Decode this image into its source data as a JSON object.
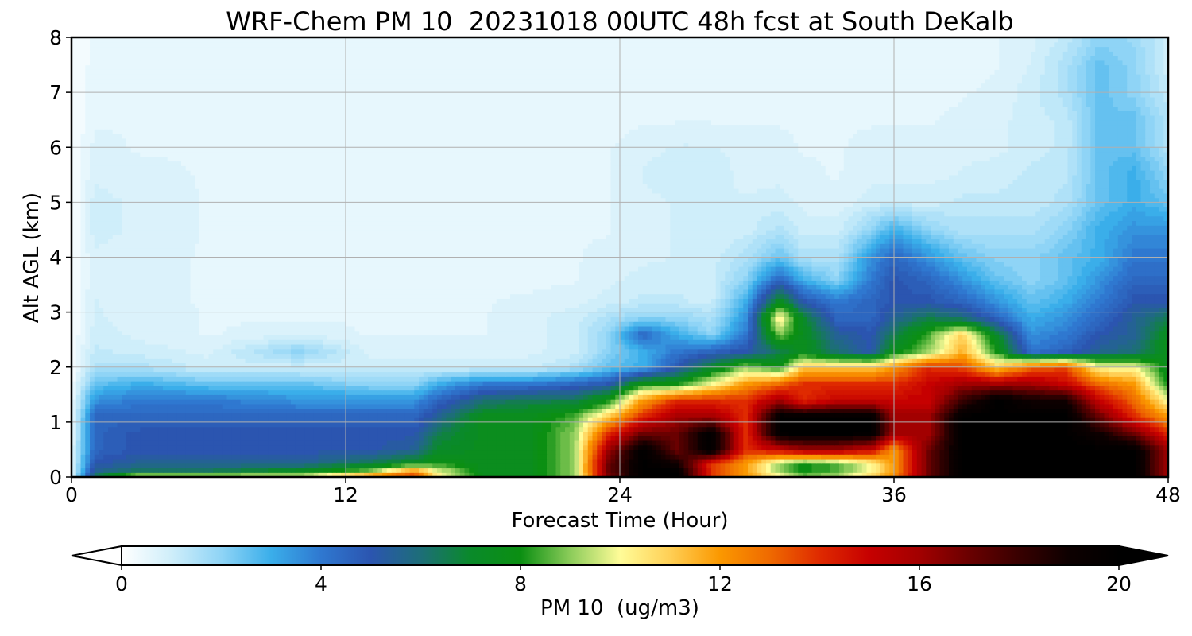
{
  "chart_data": {
    "type": "heatmap",
    "title": "WRF-Chem PM 10  20231018 00UTC 48h fcst at South DeKalb",
    "xlabel": "Forecast Time (Hour)",
    "ylabel": "Alt AGL (km)",
    "xlim": [
      0,
      48
    ],
    "ylim": [
      0,
      8
    ],
    "x_ticks": [
      0,
      12,
      24,
      36,
      48
    ],
    "y_ticks": [
      0,
      1,
      2,
      3,
      4,
      5,
      6,
      7,
      8
    ],
    "grid": true,
    "colorbar": {
      "label": "PM 10  (ug/m3)",
      "range": [
        0,
        20
      ],
      "ticks": [
        0,
        4,
        8,
        12,
        16,
        20
      ],
      "extend": "both",
      "orientation": "horizontal",
      "stops": [
        [
          0,
          "#ffffff"
        ],
        [
          1,
          "#cfeefa"
        ],
        [
          2,
          "#8fd4f6"
        ],
        [
          3,
          "#3aaeea"
        ],
        [
          4,
          "#2f78d0"
        ],
        [
          5,
          "#2b55b0"
        ],
        [
          6,
          "#1d6e78"
        ],
        [
          7,
          "#0a8a2a"
        ],
        [
          8,
          "#0b8f12"
        ],
        [
          9,
          "#8ccc5a"
        ],
        [
          10,
          "#fffc98"
        ],
        [
          11,
          "#ffcf55"
        ],
        [
          12,
          "#fb9800"
        ],
        [
          13,
          "#ef6a00"
        ],
        [
          14,
          "#df2a00"
        ],
        [
          15,
          "#c60000"
        ],
        [
          16,
          "#a20000"
        ],
        [
          17,
          "#6a0000"
        ],
        [
          18,
          "#380000"
        ],
        [
          19,
          "#0d0000"
        ],
        [
          20,
          "#000000"
        ]
      ]
    },
    "x": [
      0,
      1,
      3,
      6,
      10,
      13,
      15,
      16,
      18,
      20,
      22,
      23.5,
      25,
      26.5,
      28,
      29.5,
      31,
      32,
      33.5,
      35,
      36,
      37.5,
      39,
      40.5,
      42,
      43.5,
      45,
      46.5,
      48
    ],
    "y": [
      0,
      0.1,
      0.25,
      0.5,
      0.8,
      1.1,
      1.4,
      1.7,
      2.0,
      2.3,
      2.6,
      2.9,
      3.2,
      3.6,
      4.0,
      4.5,
      5.0,
      5.5,
      6.0,
      6.5,
      7.0,
      7.5,
      8.0
    ],
    "z": [
      [
        0.5,
        6.5,
        10.5,
        10.5,
        10,
        13,
        14,
        10.5,
        7.5,
        7.5,
        9,
        16.5,
        20,
        20,
        14,
        12,
        10.5,
        9,
        9.5,
        11,
        12.5,
        17,
        20,
        20,
        20,
        20,
        20,
        20,
        16
      ],
      [
        0.5,
        5.5,
        6.5,
        6.5,
        7.5,
        9,
        12.5,
        10,
        7.5,
        7.5,
        9,
        17,
        20,
        20,
        14,
        12,
        9,
        8,
        8.5,
        10,
        12,
        17,
        20,
        20,
        20,
        20,
        20,
        20,
        16
      ],
      [
        0.5,
        5.0,
        5.5,
        5.5,
        5.5,
        6.5,
        7.5,
        8.0,
        7.5,
        7.5,
        9,
        17,
        20,
        19,
        14,
        12,
        9,
        8,
        8.5,
        10,
        12,
        17,
        20,
        20,
        20,
        20,
        20,
        20,
        16
      ],
      [
        0.5,
        4.5,
        5.0,
        5.0,
        5.0,
        5.0,
        5.5,
        7.0,
        7.5,
        7.5,
        9,
        16,
        20,
        17,
        20,
        14,
        15,
        16,
        16,
        15,
        12,
        17,
        20,
        20,
        20,
        20,
        20,
        20,
        16
      ],
      [
        0.3,
        4.5,
        5.0,
        5.0,
        5.0,
        5.0,
        5.0,
        6.5,
        7.5,
        7.5,
        9,
        14,
        17,
        17,
        20,
        14,
        20,
        20,
        20,
        20,
        16,
        16,
        20,
        20,
        20,
        20,
        19,
        17,
        14
      ],
      [
        0.3,
        4.5,
        4.5,
        4.5,
        4.5,
        4.5,
        4.5,
        5.5,
        7.5,
        7.5,
        8.5,
        11,
        14,
        16,
        16,
        14,
        20,
        20,
        20,
        20,
        16,
        16,
        20,
        20,
        20,
        20,
        17,
        14,
        12
      ],
      [
        0.3,
        3.5,
        4.0,
        4.0,
        3.5,
        3.5,
        3.5,
        4.5,
        6.0,
        6.5,
        6.5,
        8,
        12,
        14,
        14,
        14,
        16,
        14,
        15,
        15,
        15,
        15,
        18,
        20,
        19,
        19,
        15,
        13,
        10
      ],
      [
        0.2,
        2.5,
        3.0,
        2.5,
        2.5,
        2.0,
        2.0,
        3.0,
        4.0,
        4.0,
        4.5,
        5,
        8,
        8,
        10,
        12,
        13,
        14,
        14,
        14,
        14,
        15,
        16,
        16,
        16,
        15,
        13,
        12,
        8
      ],
      [
        0.1,
        1.5,
        1.5,
        1.0,
        1.0,
        1.0,
        1.0,
        1.0,
        1.0,
        1.0,
        1.5,
        2.5,
        3.0,
        5,
        7,
        9,
        8,
        11,
        11,
        11,
        12,
        14,
        13.5,
        11,
        13,
        13.5,
        10,
        10,
        7.5
      ],
      [
        0.1,
        1.2,
        1.0,
        0.8,
        2.0,
        0.8,
        0.8,
        0.8,
        0.8,
        0.8,
        1.0,
        2.0,
        3.0,
        4.0,
        4.5,
        5.0,
        6.5,
        7.5,
        6.0,
        5.0,
        7.5,
        9,
        11.5,
        8,
        4,
        4.5,
        5.5,
        6.0,
        7.5
      ],
      [
        0.1,
        1.0,
        0.8,
        0.6,
        0.8,
        0.6,
        0.6,
        0.6,
        0.6,
        0.8,
        1.0,
        2.0,
        4.5,
        3.0,
        2.0,
        4.0,
        9.0,
        7.5,
        5.5,
        5.0,
        6.5,
        8.5,
        11,
        7,
        3.5,
        4.0,
        5.0,
        5.5,
        7.5
      ],
      [
        0.1,
        0.9,
        0.8,
        0.6,
        0.6,
        0.6,
        0.6,
        0.6,
        0.6,
        0.8,
        1.0,
        1.5,
        2.0,
        2.0,
        1.5,
        3.5,
        10.5,
        7.0,
        4.5,
        4.5,
        5.5,
        6.5,
        6.0,
        4.5,
        3.0,
        3.5,
        4.5,
        5.5,
        6.5
      ],
      [
        0.1,
        0.9,
        0.7,
        0.6,
        0.6,
        0.6,
        0.6,
        0.6,
        0.6,
        0.7,
        0.8,
        1.0,
        1.2,
        1.2,
        1.0,
        3.0,
        7.5,
        5.0,
        4.0,
        4.5,
        5.0,
        5.0,
        4.5,
        3.5,
        2.5,
        3.0,
        4.0,
        5.0,
        5.0
      ],
      [
        0.1,
        0.8,
        0.7,
        0.6,
        0.6,
        0.5,
        0.5,
        0.5,
        0.5,
        0.5,
        0.6,
        0.8,
        1.0,
        1.0,
        1.0,
        2.0,
        4.5,
        3.0,
        2.0,
        4.0,
        5.0,
        4.5,
        3.5,
        2.5,
        2.0,
        2.5,
        3.5,
        4.5,
        4.5
      ],
      [
        0.1,
        0.8,
        0.7,
        0.6,
        0.5,
        0.5,
        0.5,
        0.5,
        0.5,
        0.5,
        0.6,
        0.7,
        0.8,
        0.9,
        1.0,
        1.5,
        2.5,
        1.5,
        1.5,
        3.5,
        4.5,
        3.5,
        2.5,
        2.0,
        2.0,
        2.5,
        3.0,
        4.0,
        4.0
      ],
      [
        0.1,
        1.0,
        0.8,
        0.6,
        0.5,
        0.5,
        0.5,
        0.5,
        0.5,
        0.5,
        0.6,
        0.6,
        0.8,
        0.9,
        0.9,
        1.0,
        1.5,
        1.0,
        1.0,
        2.0,
        3.0,
        2.0,
        1.5,
        1.5,
        1.5,
        2.0,
        3.0,
        3.5,
        3.5
      ],
      [
        0.1,
        1.0,
        0.8,
        0.6,
        0.5,
        0.5,
        0.5,
        0.5,
        0.5,
        0.5,
        0.6,
        0.6,
        0.8,
        0.9,
        0.9,
        0.9,
        1.0,
        0.8,
        0.7,
        1.0,
        1.0,
        1.0,
        1.2,
        1.2,
        1.2,
        1.5,
        2.5,
        3.0,
        2.5
      ],
      [
        0.1,
        0.8,
        0.7,
        0.6,
        0.5,
        0.5,
        0.5,
        0.5,
        0.5,
        0.5,
        0.6,
        0.6,
        0.9,
        1.0,
        1.0,
        0.8,
        0.8,
        0.7,
        0.6,
        0.8,
        0.8,
        0.8,
        0.9,
        1.0,
        1.2,
        1.3,
        2.5,
        3.0,
        2.0
      ],
      [
        0.1,
        0.7,
        0.6,
        0.6,
        0.5,
        0.5,
        0.5,
        0.5,
        0.5,
        0.5,
        0.5,
        0.6,
        0.8,
        0.9,
        0.9,
        0.8,
        0.7,
        0.6,
        0.6,
        0.7,
        0.7,
        0.7,
        0.8,
        0.8,
        1.0,
        1.2,
        2.5,
        2.5,
        1.5
      ],
      [
        0.1,
        0.6,
        0.6,
        0.5,
        0.5,
        0.5,
        0.5,
        0.5,
        0.5,
        0.5,
        0.5,
        0.5,
        0.6,
        0.6,
        0.6,
        0.6,
        0.6,
        0.6,
        0.6,
        0.6,
        0.6,
        0.6,
        0.7,
        0.8,
        1.0,
        1.2,
        2.5,
        2.5,
        1.5
      ],
      [
        0.1,
        0.6,
        0.5,
        0.5,
        0.5,
        0.5,
        0.5,
        0.5,
        0.5,
        0.5,
        0.5,
        0.5,
        0.5,
        0.6,
        0.6,
        0.6,
        0.5,
        0.5,
        0.5,
        0.5,
        0.5,
        0.5,
        0.6,
        0.7,
        1.0,
        1.5,
        2.5,
        2.0,
        1.2
      ],
      [
        0.1,
        0.5,
        0.5,
        0.5,
        0.5,
        0.5,
        0.5,
        0.5,
        0.5,
        0.4,
        0.4,
        0.4,
        0.5,
        0.5,
        0.5,
        0.5,
        0.5,
        0.5,
        0.5,
        0.5,
        0.5,
        0.5,
        0.5,
        0.6,
        0.9,
        1.5,
        2.5,
        2.0,
        1.0
      ],
      [
        0.1,
        0.4,
        0.4,
        0.4,
        0.4,
        0.4,
        0.4,
        0.4,
        0.4,
        0.4,
        0.4,
        0.4,
        0.4,
        0.5,
        0.5,
        0.5,
        0.5,
        0.5,
        0.5,
        0.5,
        0.5,
        0.5,
        0.5,
        0.6,
        0.8,
        1.2,
        2.0,
        1.8,
        1.0
      ]
    ]
  }
}
